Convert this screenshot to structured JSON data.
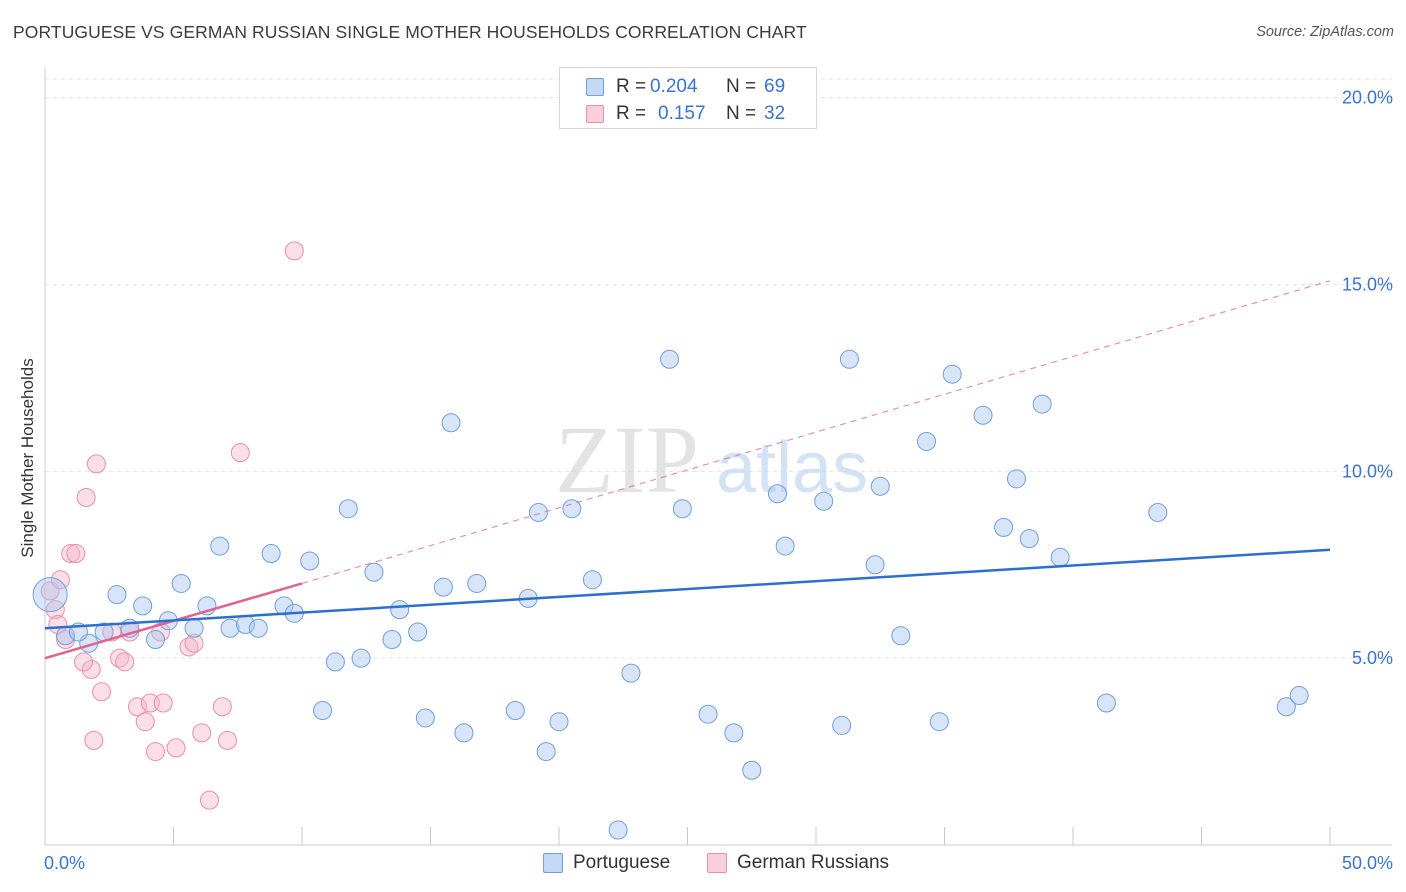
{
  "title": "PORTUGUESE VS GERMAN RUSSIAN SINGLE MOTHER HOUSEHOLDS CORRELATION CHART",
  "source": "Source: ZipAtlas.com",
  "watermark": {
    "zip": "ZIP",
    "atlas": "atlas"
  },
  "legend": {
    "rows": [
      {
        "r_label": "R =",
        "r_value": "0.204",
        "n_label": "N =",
        "n_value": "69",
        "color": "#a9c6ef"
      },
      {
        "r_label": "R =",
        "r_value": "0.157",
        "n_label": "N =",
        "n_value": "32",
        "color": "#f5b7ca"
      }
    ]
  },
  "chart_data": {
    "type": "scatter",
    "title": "PORTUGUESE VS GERMAN RUSSIAN SINGLE MOTHER HOUSEHOLDS CORRELATION CHART",
    "xlabel": "",
    "ylabel": "Single Mother Households",
    "xlim": [
      0,
      50
    ],
    "ylim": [
      0,
      20.5
    ],
    "x_tick_labels": [
      "0.0%",
      "50.0%"
    ],
    "y_ticks": [
      5,
      10,
      15,
      20
    ],
    "y_tick_labels": [
      "5.0%",
      "10.0%",
      "15.0%",
      "20.0%"
    ],
    "grid": true,
    "series": [
      {
        "name": "Portuguese",
        "color": "#a9c6ef",
        "edge": "#6f9fdc",
        "trend_color": "#2d6fce",
        "trend": {
          "x0": 0,
          "y0": 5.8,
          "x1": 50,
          "y1": 7.9
        },
        "points": [
          [
            0.2,
            6.7
          ],
          [
            0.8,
            5.6
          ],
          [
            1.7,
            5.4
          ],
          [
            2.3,
            5.7
          ],
          [
            2.8,
            6.7
          ],
          [
            3.3,
            5.8
          ],
          [
            3.8,
            6.4
          ],
          [
            4.3,
            5.5
          ],
          [
            4.8,
            6.0
          ],
          [
            5.3,
            7.0
          ],
          [
            5.8,
            5.8
          ],
          [
            6.3,
            6.4
          ],
          [
            6.8,
            8.0
          ],
          [
            7.2,
            5.8
          ],
          [
            7.8,
            5.9
          ],
          [
            8.3,
            5.8
          ],
          [
            8.8,
            7.8
          ],
          [
            9.3,
            6.4
          ],
          [
            9.7,
            6.2
          ],
          [
            10.3,
            7.6
          ],
          [
            10.8,
            3.6
          ],
          [
            11.3,
            4.9
          ],
          [
            11.8,
            9.0
          ],
          [
            12.3,
            5.0
          ],
          [
            12.8,
            7.3
          ],
          [
            13.5,
            5.5
          ],
          [
            13.8,
            6.3
          ],
          [
            14.5,
            5.7
          ],
          [
            14.8,
            3.4
          ],
          [
            15.5,
            6.9
          ],
          [
            15.8,
            11.3
          ],
          [
            16.3,
            3.0
          ],
          [
            16.8,
            7.0
          ],
          [
            18.3,
            3.6
          ],
          [
            18.8,
            6.6
          ],
          [
            19.2,
            8.9
          ],
          [
            19.5,
            2.5
          ],
          [
            20.0,
            3.3
          ],
          [
            20.5,
            9.0
          ],
          [
            21.3,
            7.1
          ],
          [
            22.8,
            4.6
          ],
          [
            22.3,
            0.4
          ],
          [
            24.3,
            13.0
          ],
          [
            24.8,
            9.0
          ],
          [
            25.8,
            3.5
          ],
          [
            26.8,
            3.0
          ],
          [
            27.5,
            2.0
          ],
          [
            28.5,
            9.4
          ],
          [
            28.8,
            8.0
          ],
          [
            30.3,
            9.2
          ],
          [
            31.3,
            13.0
          ],
          [
            31.0,
            3.2
          ],
          [
            32.3,
            7.5
          ],
          [
            32.5,
            9.6
          ],
          [
            33.3,
            5.6
          ],
          [
            34.3,
            10.8
          ],
          [
            34.8,
            3.3
          ],
          [
            35.3,
            12.6
          ],
          [
            36.5,
            11.5
          ],
          [
            37.3,
            8.5
          ],
          [
            37.8,
            9.8
          ],
          [
            38.3,
            8.2
          ],
          [
            38.8,
            11.8
          ],
          [
            39.5,
            7.7
          ],
          [
            41.3,
            3.8
          ],
          [
            43.3,
            8.9
          ],
          [
            48.3,
            3.7
          ],
          [
            48.8,
            4.0
          ],
          [
            1.3,
            5.7
          ]
        ],
        "sizes": {
          "0": 34
        }
      },
      {
        "name": "German Russians",
        "color": "#f5b7ca",
        "edge": "#ea8eab",
        "trend_color": "#e0628f",
        "trend": {
          "x0": 0,
          "y0": 5.0,
          "x1": 10,
          "y1": 7.0
        },
        "trend_dashed": {
          "x0": 10,
          "y0": 7.0,
          "x1": 50,
          "y1": 15.1
        },
        "points": [
          [
            0.2,
            6.8
          ],
          [
            0.4,
            6.3
          ],
          [
            0.5,
            5.9
          ],
          [
            0.6,
            7.1
          ],
          [
            0.8,
            5.5
          ],
          [
            1.0,
            7.8
          ],
          [
            1.2,
            7.8
          ],
          [
            1.6,
            9.3
          ],
          [
            1.8,
            4.7
          ],
          [
            1.9,
            2.8
          ],
          [
            2.0,
            10.2
          ],
          [
            2.2,
            4.1
          ],
          [
            2.6,
            5.7
          ],
          [
            2.9,
            5.0
          ],
          [
            3.1,
            4.9
          ],
          [
            3.3,
            5.7
          ],
          [
            3.6,
            3.7
          ],
          [
            3.9,
            3.3
          ],
          [
            4.1,
            3.8
          ],
          [
            4.3,
            2.5
          ],
          [
            4.6,
            3.8
          ],
          [
            5.1,
            2.6
          ],
          [
            5.6,
            5.3
          ],
          [
            5.8,
            5.4
          ],
          [
            6.1,
            3.0
          ],
          [
            6.4,
            1.2
          ],
          [
            6.9,
            3.7
          ],
          [
            7.1,
            2.8
          ],
          [
            7.6,
            10.5
          ],
          [
            9.7,
            15.9
          ],
          [
            4.5,
            5.7
          ],
          [
            1.5,
            4.9
          ]
        ]
      }
    ]
  },
  "bottom_legend": [
    {
      "label": "Portuguese",
      "color": "#a9c6ef",
      "edge": "#6f9fdc"
    },
    {
      "label": "German Russians",
      "color": "#f5b7ca",
      "edge": "#ea8eab"
    }
  ]
}
